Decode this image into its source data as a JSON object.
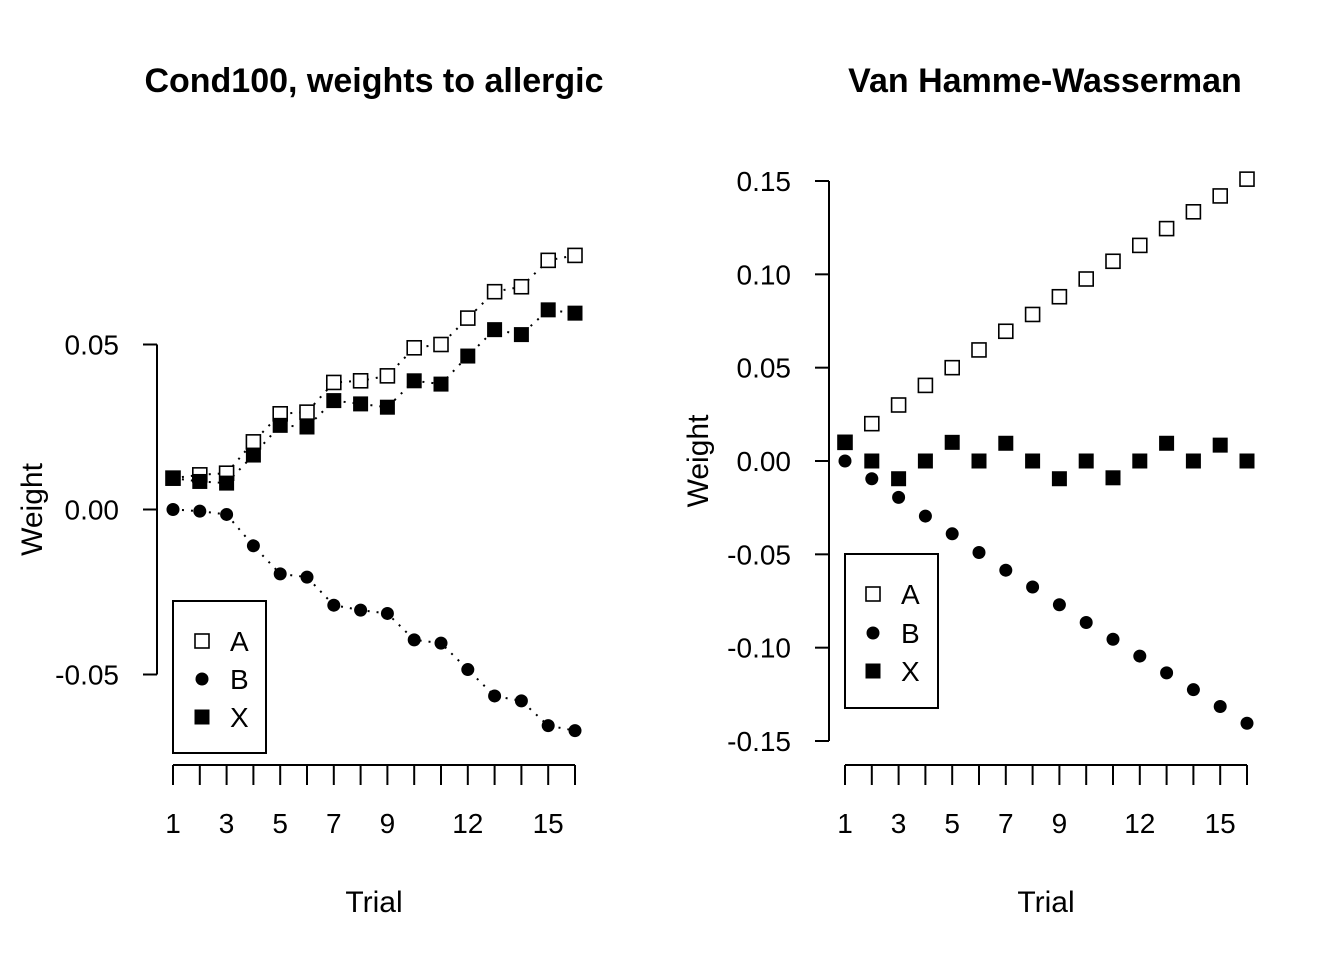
{
  "chart_data": [
    {
      "type": "scatter",
      "title": "Cond100, weights to allergic",
      "xlabel": "Trial",
      "ylabel": "Weight",
      "xlim": [
        1,
        16
      ],
      "ylim": [
        -0.075,
        0.085
      ],
      "x_ticks": [
        1,
        2,
        3,
        4,
        5,
        6,
        7,
        8,
        9,
        10,
        11,
        12,
        13,
        14,
        15,
        16
      ],
      "x_tick_labels": [
        {
          "x": 1,
          "label": "1"
        },
        {
          "x": 3,
          "label": "3"
        },
        {
          "x": 5,
          "label": "5"
        },
        {
          "x": 7,
          "label": "7"
        },
        {
          "x": 9,
          "label": "9"
        },
        {
          "x": 12,
          "label": "12"
        },
        {
          "x": 15,
          "label": "15"
        }
      ],
      "y_ticks": [
        {
          "value": -0.05,
          "label": "-0.05"
        },
        {
          "value": 0,
          "label": "0.00"
        },
        {
          "value": 0.05,
          "label": "0.05"
        }
      ],
      "legend": "bottom-left",
      "dotted_lines": true,
      "series": [
        {
          "name": "A",
          "marker": "open-square",
          "x": [
            1,
            2,
            3,
            4,
            5,
            6,
            7,
            8,
            9,
            10,
            11,
            12,
            13,
            14,
            15,
            16
          ],
          "values": [
            0.0095,
            0.0105,
            0.011,
            0.0205,
            0.029,
            0.0295,
            0.0385,
            0.039,
            0.0405,
            0.049,
            0.05,
            0.058,
            0.066,
            0.0675,
            0.0755,
            0.077
          ]
        },
        {
          "name": "B",
          "marker": "filled-circle",
          "x": [
            1,
            2,
            3,
            4,
            5,
            6,
            7,
            8,
            9,
            10,
            11,
            12,
            13,
            14,
            15,
            16
          ],
          "values": [
            0.0,
            -0.0005,
            -0.0015,
            -0.011,
            -0.0195,
            -0.0205,
            -0.029,
            -0.0305,
            -0.0315,
            -0.0395,
            -0.0405,
            -0.0485,
            -0.0565,
            -0.058,
            -0.0655,
            -0.067
          ]
        },
        {
          "name": "X",
          "marker": "filled-square",
          "x": [
            1,
            2,
            3,
            4,
            5,
            6,
            7,
            8,
            9,
            10,
            11,
            12,
            13,
            14,
            15,
            16
          ],
          "values": [
            0.0095,
            0.0085,
            0.008,
            0.0165,
            0.0255,
            0.025,
            0.033,
            0.032,
            0.031,
            0.039,
            0.038,
            0.0465,
            0.0545,
            0.053,
            0.0605,
            0.0595
          ]
        }
      ]
    },
    {
      "type": "scatter",
      "title": "Van Hamme-Wasserman",
      "xlabel": "Trial",
      "ylabel": "Weight",
      "xlim": [
        1,
        16
      ],
      "ylim": [
        -0.15,
        0.15
      ],
      "x_ticks": [
        1,
        2,
        3,
        4,
        5,
        6,
        7,
        8,
        9,
        10,
        11,
        12,
        13,
        14,
        15,
        16
      ],
      "x_tick_labels": [
        {
          "x": 1,
          "label": "1"
        },
        {
          "x": 3,
          "label": "3"
        },
        {
          "x": 5,
          "label": "5"
        },
        {
          "x": 7,
          "label": "7"
        },
        {
          "x": 9,
          "label": "9"
        },
        {
          "x": 12,
          "label": "12"
        },
        {
          "x": 15,
          "label": "15"
        }
      ],
      "y_ticks": [
        {
          "value": -0.15,
          "label": "-0.15"
        },
        {
          "value": -0.1,
          "label": "-0.10"
        },
        {
          "value": -0.05,
          "label": "-0.05"
        },
        {
          "value": 0,
          "label": "0.00"
        },
        {
          "value": 0.05,
          "label": "0.05"
        },
        {
          "value": 0.1,
          "label": "0.10"
        },
        {
          "value": 0.15,
          "label": "0.15"
        }
      ],
      "legend": "left-middle",
      "dotted_lines": false,
      "series": [
        {
          "name": "A",
          "marker": "open-square",
          "x": [
            1,
            2,
            3,
            4,
            5,
            6,
            7,
            8,
            9,
            10,
            11,
            12,
            13,
            14,
            15,
            16
          ],
          "values": [
            0.01,
            0.02,
            0.03,
            0.0405,
            0.05,
            0.0595,
            0.0695,
            0.0785,
            0.088,
            0.0975,
            0.107,
            0.1155,
            0.1245,
            0.1335,
            0.142,
            0.151
          ]
        },
        {
          "name": "B",
          "marker": "filled-circle",
          "x": [
            1,
            2,
            3,
            4,
            5,
            6,
            7,
            8,
            9,
            10,
            11,
            12,
            13,
            14,
            15,
            16
          ],
          "values": [
            0.0,
            -0.0095,
            -0.0195,
            -0.0295,
            -0.039,
            -0.049,
            -0.0585,
            -0.0675,
            -0.077,
            -0.0865,
            -0.0955,
            -0.1045,
            -0.1135,
            -0.1225,
            -0.1315,
            -0.1405
          ]
        },
        {
          "name": "X",
          "marker": "filled-square",
          "x": [
            1,
            2,
            3,
            4,
            5,
            6,
            7,
            8,
            9,
            10,
            11,
            12,
            13,
            14,
            15,
            16
          ],
          "values": [
            0.01,
            0.0,
            -0.0095,
            0.0,
            0.01,
            0.0,
            0.0095,
            0.0,
            -0.0095,
            0.0,
            -0.009,
            0.0,
            0.0095,
            0.0,
            0.0085,
            0.0
          ]
        }
      ]
    }
  ]
}
